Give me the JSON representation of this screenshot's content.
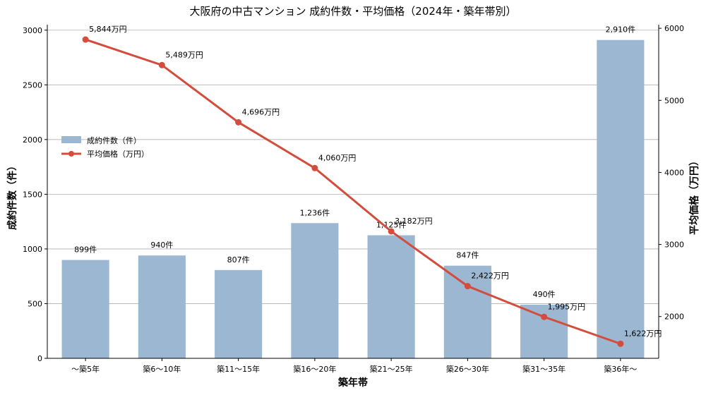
{
  "chart_data": {
    "type": "bar",
    "title": "大阪府の中古マンション 成約件数・平均価格（2024年・築年帯別）",
    "xlabel": "築年帯",
    "ylabel_left": "成約件数（件）",
    "ylabel_right": "平均価格（万円）",
    "categories": [
      "～築5年",
      "築6～10年",
      "築11～15年",
      "築16～20年",
      "築21～25年",
      "築26～30年",
      "築31～35年",
      "築36年～"
    ],
    "series": [
      {
        "name": "成約件数（件）",
        "type": "bar",
        "axis": "left",
        "color": "#9bb7d1",
        "values": [
          899,
          940,
          807,
          1236,
          1125,
          847,
          490,
          2910
        ],
        "labels": [
          "899件",
          "940件",
          "807件",
          "1,236件",
          "1,125件",
          "847件",
          "490件",
          "2,910件"
        ]
      },
      {
        "name": "平均価格（万円）",
        "type": "line",
        "axis": "right",
        "color": "#d44c3c",
        "values": [
          5844,
          5489,
          4696,
          4060,
          3182,
          2422,
          1995,
          1622
        ],
        "labels": [
          "5,844万円",
          "5,489万円",
          "4,696万円",
          "4,060万円",
          "3,182万円",
          "2,422万円",
          "1,995万円",
          "1,622万円"
        ]
      }
    ],
    "ylim_left": [
      0,
      3050
    ],
    "ylim_right": [
      1420,
      6050
    ],
    "yticks_left": [
      0,
      500,
      1000,
      1500,
      2000,
      2500,
      3000
    ],
    "yticks_right": [
      2000,
      3000,
      4000,
      5000,
      6000
    ],
    "grid": true,
    "legend_position": "center-left"
  }
}
